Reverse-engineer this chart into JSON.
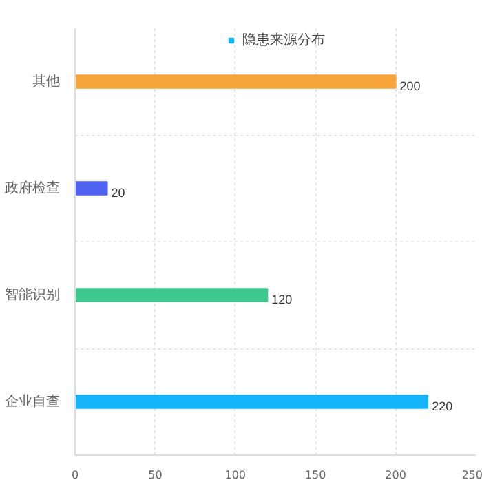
{
  "chart_data": {
    "type": "bar",
    "orientation": "horizontal",
    "legend": "top",
    "grid": true,
    "data_labels": true,
    "categories": [
      "其他",
      "政府检查",
      "智能识别",
      "企业自查"
    ],
    "series": [
      {
        "name": "隐患来源分布",
        "values": [
          200,
          20,
          120,
          220
        ]
      }
    ],
    "colors": [
      "#f6a53a",
      "#4f63f0",
      "#3fc990",
      "#16b4fa"
    ],
    "xlim": [
      0,
      250
    ],
    "xticks": [
      0,
      50,
      100,
      150,
      200,
      250
    ]
  }
}
